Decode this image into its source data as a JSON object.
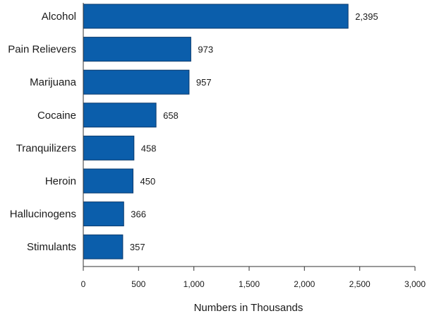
{
  "chart_data": {
    "type": "bar",
    "orientation": "horizontal",
    "title": "",
    "xlabel": "Numbers in Thousands",
    "ylabel": "",
    "categories": [
      "Alcohol",
      "Pain Relievers",
      "Marijuana",
      "Cocaine",
      "Tranquilizers",
      "Heroin",
      "Hallucinogens",
      "Stimulants"
    ],
    "values": [
      2395,
      973,
      957,
      658,
      458,
      450,
      366,
      357
    ],
    "value_labels": [
      "2,395",
      "973",
      "957",
      "658",
      "458",
      "450",
      "366",
      "357"
    ],
    "xlim": [
      0,
      3000
    ],
    "xticks": [
      0,
      500,
      1000,
      1500,
      2000,
      2500,
      3000
    ],
    "xtick_labels": [
      "0",
      "500",
      "1,000",
      "1,500",
      "2,000",
      "2,500",
      "3,000"
    ],
    "grid": false,
    "legend": "none",
    "bar_color": "#0b5eab",
    "bar_edge_color": "#0a3a6e"
  }
}
